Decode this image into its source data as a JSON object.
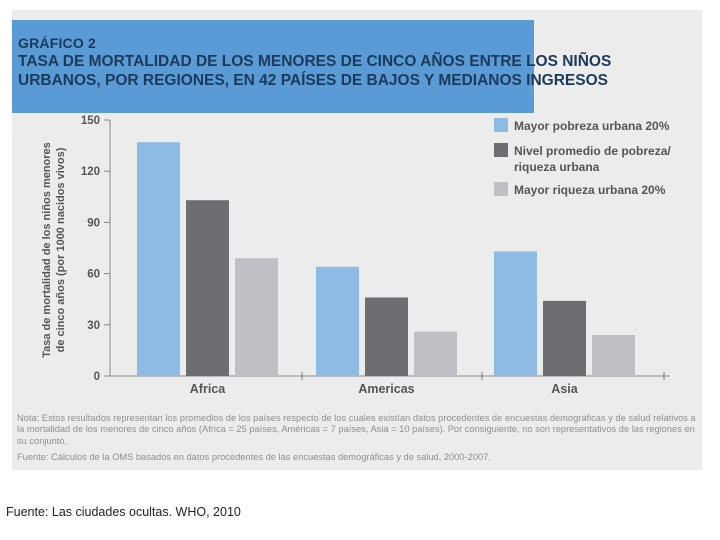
{
  "header": {
    "label": "GRÁFICO 2",
    "title_line1": "TASA DE MORTALIDAD DE LOS MENORES DE CINCO AÑOS ENTRE LOS NIÑOS",
    "title_line2": "URBANOS, POR REGIONES, EN 42 PAÍSES DE BAJOS Y MEDIANOS INGRESOS"
  },
  "chart_data": {
    "type": "bar",
    "categories": [
      "Africa",
      "Americas",
      "Asia"
    ],
    "ylabel_line1": "Tasa de mortalidad de los niños menores",
    "ylabel_line2": "de cinco años (por 1000 nacidos vivos)",
    "ylim": [
      0,
      150
    ],
    "yticks": [
      "0",
      "30",
      "60",
      "90",
      "120",
      "150"
    ],
    "series": [
      {
        "name": "Mayor pobreza urbana 20%",
        "legend_lines": [
          "Mayor pobreza urbana 20%"
        ],
        "color": "#8dbbe3",
        "values": [
          137,
          64,
          73
        ]
      },
      {
        "name": "Nivel promedio de pobreza/ riqueza urbana",
        "legend_lines": [
          "Nivel promedio de pobreza/",
          "riqueza urbana"
        ],
        "color": "#6e6e70",
        "values": [
          103,
          46,
          44
        ]
      },
      {
        "name": "Mayor riqueza urbana 20%",
        "legend_lines": [
          "Mayor riqueza urbana 20%"
        ],
        "color": "#c0c0c4",
        "values": [
          69,
          26,
          24
        ]
      }
    ]
  },
  "notes": {
    "nota": "Nota: Estos resultados representan los promedios de los países respecto de los cuales existían datos procedentes de encuestas demográficas y de salud relativos a la mortalidad de los menores de cinco años (Africa = 25 países, Américas = 7 países, Asia = 10 países). Por consiguiente, no son representativos de las regiones en su conjunto.",
    "fuente": "Fuente: Cálculos de la OMS basados en datos procedentes de las encuestas demográficas y de salud, 2000-2007."
  },
  "caption": "Fuente: Las ciudades ocultas. WHO, 2010"
}
